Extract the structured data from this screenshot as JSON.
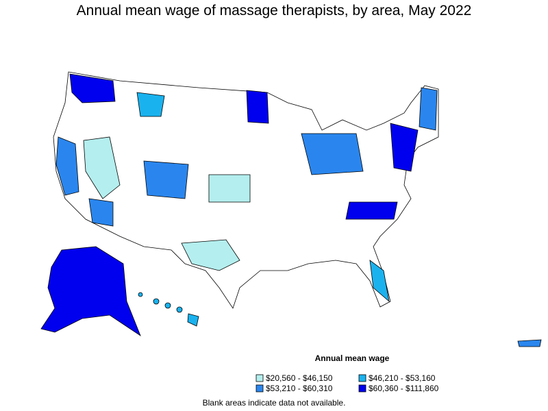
{
  "title": "Annual mean wage of massage therapists, by area, May 2022",
  "legend": {
    "title": "Annual mean wage",
    "items": [
      {
        "label": "$20,560 - $46,150",
        "color": "#b4eeee"
      },
      {
        "label": "$46,210 - $53,160",
        "color": "#1ab2ee"
      },
      {
        "label": "$53,210 - $60,310",
        "color": "#2a86ee"
      },
      {
        "label": "$60,360 - $111,860",
        "color": "#0000ee"
      }
    ]
  },
  "footnote": "Blank areas indicate data not available."
}
